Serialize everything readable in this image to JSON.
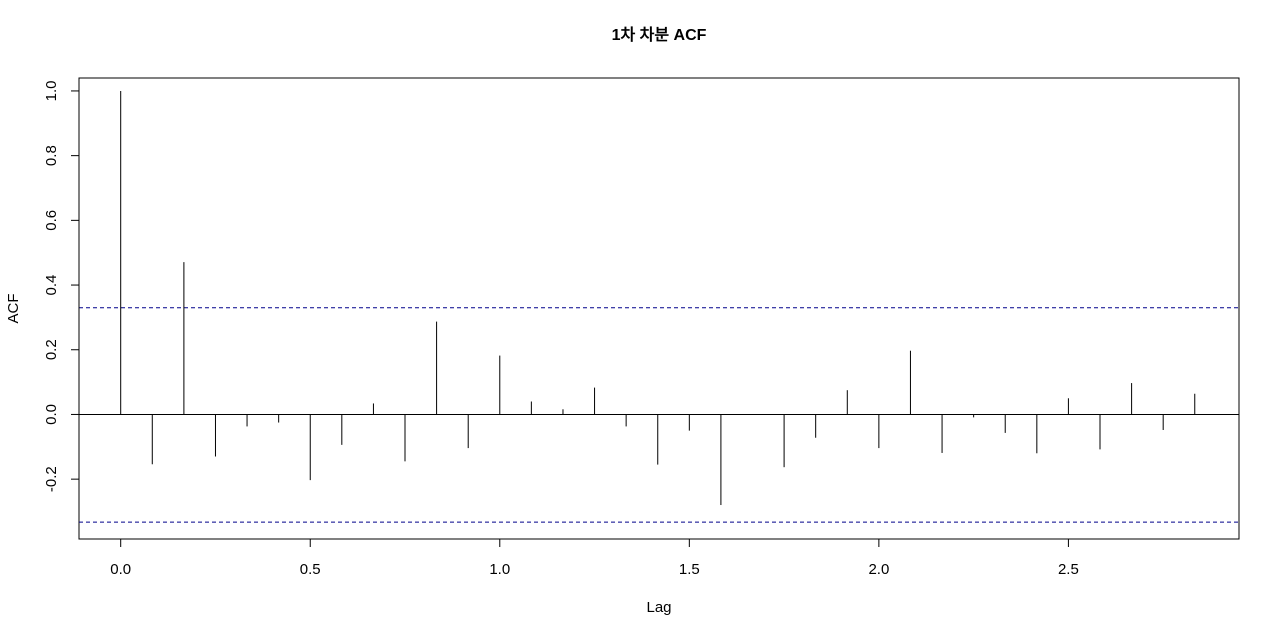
{
  "chart_data": {
    "type": "bar",
    "title": "1차 차분 ACF",
    "xlabel": "Lag",
    "ylabel": "ACF",
    "xlim": [
      -0.11,
      2.95
    ],
    "ylim": [
      -0.385,
      1.04
    ],
    "x_ticks": [
      0.0,
      0.5,
      1.0,
      1.5,
      2.0,
      2.5
    ],
    "x_tick_labels": [
      "0.0",
      "0.5",
      "1.0",
      "1.5",
      "2.0",
      "2.5"
    ],
    "y_ticks": [
      -0.2,
      0.0,
      0.2,
      0.4,
      0.6,
      0.8,
      1.0
    ],
    "y_tick_labels": [
      "-0.2",
      "0.0",
      "0.2",
      "0.4",
      "0.6",
      "0.8",
      "1.0"
    ],
    "confidence_bounds": [
      0.33,
      -0.333
    ],
    "grid": false,
    "colors": {
      "bars": "#000000",
      "bounds": "#00008B",
      "zero_line": "#000000"
    },
    "lags": [
      0.0,
      0.0833,
      0.1667,
      0.25,
      0.3333,
      0.4167,
      0.5,
      0.5833,
      0.6667,
      0.75,
      0.8333,
      0.9167,
      1.0,
      1.0833,
      1.1667,
      1.25,
      1.3333,
      1.4167,
      1.5,
      1.5833,
      1.6667,
      1.75,
      1.8333,
      1.9167,
      2.0,
      2.0833,
      2.1667,
      2.25,
      2.3333,
      2.4167,
      2.5,
      2.5833,
      2.6667,
      2.75,
      2.8333
    ],
    "values": [
      1.0,
      -0.154,
      0.471,
      -0.13,
      -0.037,
      -0.025,
      -0.203,
      -0.094,
      0.034,
      -0.145,
      0.287,
      -0.104,
      0.182,
      0.04,
      0.016,
      0.083,
      -0.037,
      -0.155,
      -0.05,
      -0.28,
      0.0,
      -0.163,
      -0.072,
      0.075,
      -0.104,
      0.197,
      -0.119,
      -0.009,
      -0.057,
      -0.12,
      0.05,
      -0.108,
      0.097,
      -0.048,
      0.064
    ]
  }
}
